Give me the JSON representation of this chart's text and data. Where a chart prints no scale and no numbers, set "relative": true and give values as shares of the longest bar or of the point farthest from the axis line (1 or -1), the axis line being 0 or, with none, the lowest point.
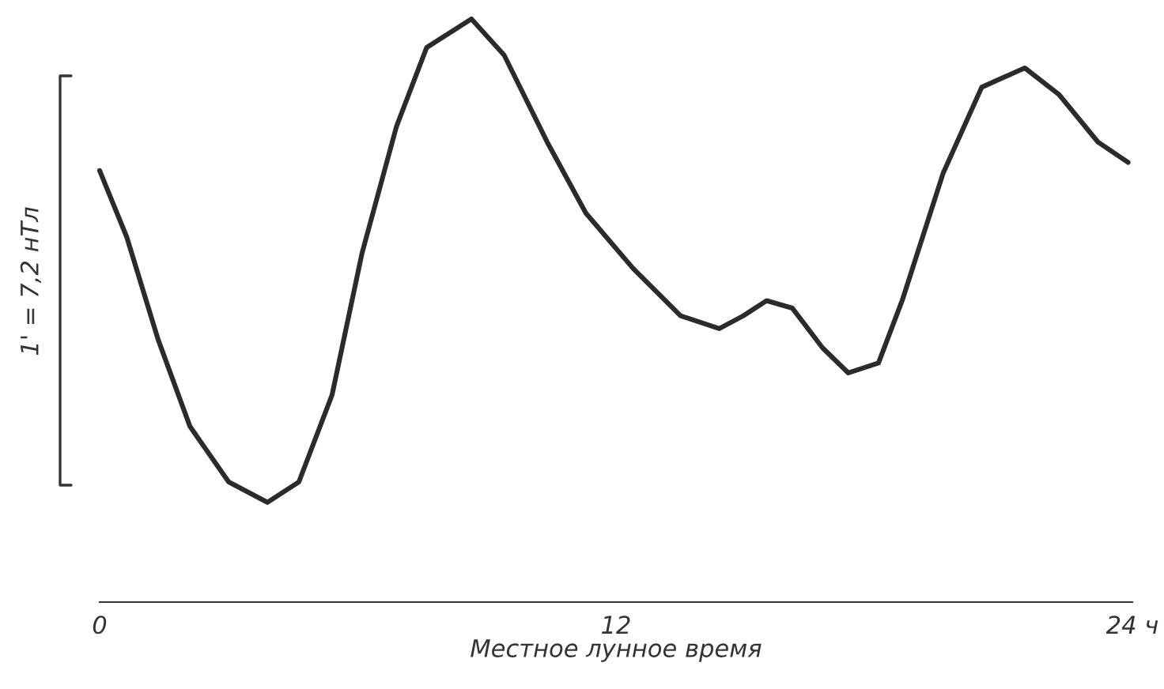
{
  "chart_data": {
    "type": "line",
    "relative": true,
    "xlabel": "Местное лунное время",
    "ylabel": "1' = 7,2 нТл",
    "xlim": [
      0,
      24
    ],
    "xticks": [
      0,
      12,
      {
        "value": 24,
        "label": "24 ч"
      }
    ],
    "grid": false,
    "legend": false,
    "series": [
      {
        "color": "#2b2b2b",
        "x": [
          0,
          0.63,
          1.36,
          2.1,
          3.0,
          3.9,
          4.63,
          5.4,
          6.1,
          6.9,
          7.6,
          8.64,
          9.4,
          10.4,
          11.3,
          12.4,
          13.5,
          14.4,
          14.96,
          15.5,
          16.1,
          16.8,
          17.4,
          18.1,
          18.65,
          19.6,
          20.5,
          21.5,
          22.3,
          23.2,
          23.9
        ],
        "values": [
          0.74,
          0.626,
          0.45,
          0.301,
          0.206,
          0.171,
          0.206,
          0.355,
          0.599,
          0.816,
          0.951,
          1,
          0.938,
          0.789,
          0.667,
          0.572,
          0.491,
          0.469,
          0.491,
          0.517,
          0.504,
          0.436,
          0.393,
          0.41,
          0.517,
          0.735,
          0.883,
          0.916,
          0.87,
          0.789,
          0.754
        ]
      }
    ]
  }
}
